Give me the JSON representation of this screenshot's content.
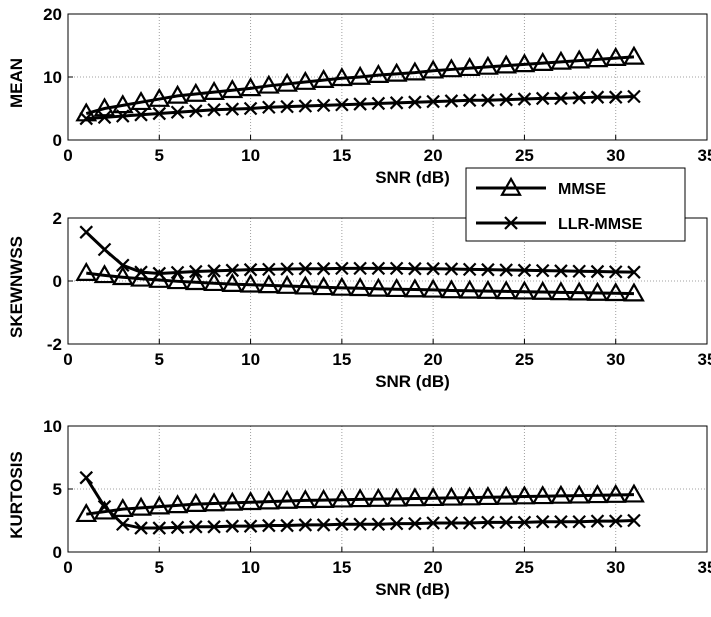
{
  "chart_data": [
    {
      "type": "line",
      "xlabel": "SNR (dB)",
      "ylabel": "MEAN",
      "xlim": [
        0,
        35
      ],
      "ylim": [
        0,
        20
      ],
      "xticks": [
        0,
        5,
        10,
        15,
        20,
        25,
        30,
        35
      ],
      "yticks": [
        0,
        10,
        20
      ],
      "grid": true,
      "x": [
        1,
        2,
        3,
        4,
        5,
        6,
        7,
        8,
        9,
        10,
        11,
        12,
        13,
        14,
        15,
        16,
        17,
        18,
        19,
        20,
        21,
        22,
        23,
        24,
        25,
        26,
        27,
        28,
        29,
        30,
        31
      ],
      "series": [
        {
          "name": "MMSE",
          "marker": "triangle",
          "values": [
            4.2,
            5.0,
            5.5,
            6.0,
            6.5,
            7.0,
            7.3,
            7.6,
            7.9,
            8.2,
            8.6,
            8.9,
            9.2,
            9.5,
            9.8,
            10.0,
            10.3,
            10.5,
            10.7,
            11.0,
            11.2,
            11.4,
            11.6,
            11.8,
            12.0,
            12.2,
            12.4,
            12.6,
            12.8,
            13.0,
            13.2
          ]
        },
        {
          "name": "LLR-MMSE",
          "marker": "x",
          "values": [
            3.4,
            3.6,
            3.8,
            4.0,
            4.2,
            4.4,
            4.6,
            4.8,
            4.9,
            5.0,
            5.2,
            5.3,
            5.4,
            5.5,
            5.6,
            5.7,
            5.8,
            5.9,
            6.0,
            6.1,
            6.2,
            6.3,
            6.3,
            6.4,
            6.5,
            6.6,
            6.6,
            6.7,
            6.8,
            6.8,
            6.9
          ]
        }
      ]
    },
    {
      "type": "line",
      "xlabel": "SNR (dB)",
      "ylabel": "SKEWNWSS",
      "xlim": [
        0,
        35
      ],
      "ylim": [
        -2,
        2
      ],
      "xticks": [
        0,
        5,
        10,
        15,
        20,
        25,
        30,
        35
      ],
      "yticks": [
        -2,
        0,
        2
      ],
      "grid": true,
      "x": [
        1,
        2,
        3,
        4,
        5,
        6,
        7,
        8,
        9,
        10,
        11,
        12,
        13,
        14,
        15,
        16,
        17,
        18,
        19,
        20,
        21,
        22,
        23,
        24,
        25,
        26,
        27,
        28,
        29,
        30,
        31
      ],
      "series": [
        {
          "name": "MMSE",
          "marker": "triangle",
          "values": [
            0.25,
            0.18,
            0.12,
            0.07,
            0.03,
            -0.01,
            -0.04,
            -0.07,
            -0.1,
            -0.12,
            -0.14,
            -0.16,
            -0.18,
            -0.2,
            -0.22,
            -0.23,
            -0.25,
            -0.26,
            -0.27,
            -0.28,
            -0.3,
            -0.31,
            -0.32,
            -0.33,
            -0.34,
            -0.35,
            -0.36,
            -0.37,
            -0.38,
            -0.39,
            -0.4
          ]
        },
        {
          "name": "LLR-MMSE",
          "marker": "x",
          "values": [
            1.55,
            1.0,
            0.5,
            0.28,
            0.24,
            0.27,
            0.3,
            0.32,
            0.34,
            0.36,
            0.37,
            0.38,
            0.39,
            0.39,
            0.4,
            0.4,
            0.4,
            0.4,
            0.39,
            0.39,
            0.38,
            0.37,
            0.36,
            0.35,
            0.34,
            0.33,
            0.32,
            0.31,
            0.3,
            0.29,
            0.28
          ]
        }
      ]
    },
    {
      "type": "line",
      "xlabel": "SNR (dB)",
      "ylabel": "KURTOSIS",
      "xlim": [
        0,
        35
      ],
      "ylim": [
        0,
        10
      ],
      "xticks": [
        0,
        5,
        10,
        15,
        20,
        25,
        30,
        35
      ],
      "yticks": [
        0,
        5,
        10
      ],
      "grid": true,
      "x": [
        1,
        2,
        3,
        4,
        5,
        6,
        7,
        8,
        9,
        10,
        11,
        12,
        13,
        14,
        15,
        16,
        17,
        18,
        19,
        20,
        21,
        22,
        23,
        24,
        25,
        26,
        27,
        28,
        29,
        30,
        31
      ],
      "series": [
        {
          "name": "MMSE",
          "marker": "triangle",
          "values": [
            3.0,
            3.2,
            3.4,
            3.5,
            3.6,
            3.7,
            3.8,
            3.85,
            3.9,
            3.95,
            4.0,
            4.05,
            4.1,
            4.12,
            4.15,
            4.18,
            4.2,
            4.22,
            4.25,
            4.27,
            4.3,
            4.32,
            4.35,
            4.37,
            4.4,
            4.42,
            4.45,
            4.47,
            4.5,
            4.52,
            4.55
          ]
        },
        {
          "name": "LLR-MMSE",
          "marker": "x",
          "values": [
            5.9,
            3.6,
            2.2,
            1.9,
            1.9,
            1.95,
            2.0,
            2.0,
            2.05,
            2.05,
            2.1,
            2.1,
            2.15,
            2.15,
            2.2,
            2.2,
            2.2,
            2.25,
            2.25,
            2.3,
            2.3,
            2.3,
            2.35,
            2.35,
            2.35,
            2.4,
            2.4,
            2.4,
            2.45,
            2.45,
            2.5
          ]
        }
      ]
    }
  ],
  "legend": {
    "placement": "between top and middle panels, right",
    "entries": [
      {
        "label": "MMSE",
        "marker": "triangle"
      },
      {
        "label": "LLR-MMSE",
        "marker": "x"
      }
    ]
  }
}
